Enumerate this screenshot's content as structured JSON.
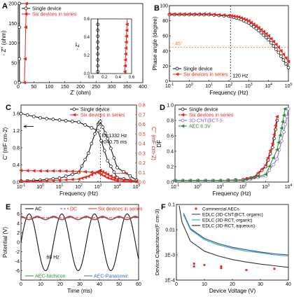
{
  "chart_data": [
    {
      "panel": "A",
      "type": "line",
      "xlabel": "Z' (ohm)",
      "ylabel": "- Z'' (ohm)",
      "xlim": [
        0,
        400
      ],
      "ylim": [
        0,
        200
      ],
      "xticks": [
        "0",
        "50",
        "100",
        "150",
        "200",
        "250",
        "300",
        "350",
        "400"
      ],
      "yticks": [
        "0",
        "50",
        "100",
        "150",
        "200"
      ],
      "legend": [
        "Single device",
        "Six devices in series"
      ],
      "series": [
        {
          "name": "Single device",
          "color": "#000000",
          "x": [
            0.1,
            0.1,
            0.1,
            0.1
          ],
          "y": [
            0,
            60,
            140,
            200
          ]
        },
        {
          "name": "Six devices in series",
          "color": "#e8281e",
          "x": [
            0.5,
            0.55,
            0.6,
            0.65
          ],
          "y": [
            0,
            60,
            140,
            200
          ]
        }
      ],
      "inset": {
        "xlim": [
          0,
          0.6
        ],
        "ylim": [
          0,
          0.6
        ],
        "xticks": [
          "0.0",
          "0.2",
          "0.4",
          "0.6"
        ],
        "yticks": [
          "0.0",
          "0.2",
          "0.4",
          "0.6"
        ],
        "ylabel": "- Z''"
      }
    },
    {
      "panel": "B",
      "type": "line",
      "xlabel": "Frequency (Hz)",
      "ylabel": "Phase angle (degree)",
      "xlim_log": [
        -1,
        5
      ],
      "ylim": [
        0,
        100
      ],
      "xticks": [
        "10-1",
        "100",
        "101",
        "102",
        "103",
        "104",
        "105"
      ],
      "yticks": [
        "0",
        "20",
        "40",
        "60",
        "80",
        "100"
      ],
      "legend": [
        "Single device",
        "Six devices in series"
      ],
      "annotations": [
        "- 45°",
        "120 Hz"
      ],
      "series": [
        {
          "name": "Single device",
          "color": "#000000",
          "logx": [
            -1,
            0,
            1,
            2,
            2.5,
            3,
            3.5,
            4,
            4.5,
            5
          ],
          "y": [
            88,
            88,
            88,
            86,
            83,
            77,
            67,
            55,
            38,
            18
          ]
        },
        {
          "name": "Six devices in series",
          "color": "#e8281e",
          "logx": [
            -1,
            0,
            1,
            2,
            2.5,
            3,
            3.5,
            4,
            4.5,
            5
          ],
          "y": [
            89,
            89,
            89,
            87,
            85,
            80,
            71,
            60,
            45,
            26
          ]
        }
      ]
    },
    {
      "panel": "C",
      "type": "line",
      "xlabel": "Frequency (Hz)",
      "ylabel": "C' (mF cm-2)",
      "ylabel2": "C'' (mF cm-2)",
      "xlim_log": [
        -1,
        5
      ],
      "ylim": [
        0,
        1.8
      ],
      "ylim2": [
        0,
        0.8
      ],
      "xticks": [
        "10-1",
        "100",
        "101",
        "102",
        "103",
        "104",
        "105"
      ],
      "yticks": [
        "0.0",
        "0.4",
        "0.8",
        "1.2",
        "1.6"
      ],
      "y2ticks": [
        "0.0",
        "0.1",
        "0.2",
        "0.3",
        "0.4",
        "0.5",
        "0.6",
        "0.7",
        "0.8"
      ],
      "legend": [
        "Single device",
        "Six devices in series"
      ],
      "annotations": [
        "f0=1332 Hz",
        "τ0=0.75 ms"
      ],
      "series": [
        {
          "name": "Single device C'",
          "color": "#000000",
          "logx": [
            -1,
            0,
            1,
            2,
            3,
            3.5,
            4,
            5
          ],
          "y": [
            1.6,
            1.5,
            1.45,
            1.4,
            1.2,
            0.5,
            0.1,
            0.02
          ]
        },
        {
          "name": "Single device C''",
          "color": "#000000",
          "logx": [
            -1,
            0,
            1,
            2,
            2.5,
            3,
            3.12,
            3.5,
            4,
            5
          ],
          "y": [
            0.01,
            0.02,
            0.04,
            0.1,
            0.3,
            0.6,
            0.63,
            0.45,
            0.15,
            0.02
          ]
        },
        {
          "name": "Six devices C'",
          "color": "#e8281e",
          "logx": [
            -1,
            0,
            1,
            2,
            3,
            3.5,
            4,
            5
          ],
          "y": [
            0.27,
            0.26,
            0.26,
            0.25,
            0.22,
            0.1,
            0.03,
            0.01
          ]
        },
        {
          "name": "Six devices C''",
          "color": "#e8281e",
          "logx": [
            -1,
            0,
            1,
            2,
            2.5,
            3,
            3.12,
            3.5,
            4,
            5
          ],
          "y": [
            0.01,
            0.01,
            0.02,
            0.03,
            0.06,
            0.11,
            0.12,
            0.08,
            0.03,
            0.01
          ]
        }
      ]
    },
    {
      "panel": "D",
      "type": "line",
      "xlabel": "Frequency (Hz)",
      "ylabel": "DF",
      "xlim_log": [
        -1,
        4
      ],
      "ylim": [
        0,
        1.0
      ],
      "xticks": [
        "10-1",
        "100",
        "101",
        "102",
        "103",
        "104"
      ],
      "yticks": [
        "0.0",
        "0.2",
        "0.4",
        "0.6",
        "0.8",
        "1.0"
      ],
      "legend": [
        "Single device",
        "Six devices in series",
        "3D-CNT@CT-5",
        "AEC 6.3V"
      ],
      "series": [
        {
          "name": "Single device",
          "color": "#000000",
          "logx": [
            -1,
            0,
            1,
            2,
            2.5,
            3,
            3.3,
            3.5
          ],
          "y": [
            0.02,
            0.02,
            0.02,
            0.03,
            0.06,
            0.2,
            0.45,
            0.8
          ]
        },
        {
          "name": "Six devices in series",
          "color": "#e8281e",
          "logx": [
            -1,
            0,
            1,
            2,
            2.5,
            3,
            3.3,
            3.5
          ],
          "y": [
            0.02,
            0.02,
            0.02,
            0.03,
            0.07,
            0.22,
            0.5,
            0.85
          ]
        },
        {
          "name": "3D-CNT@CT-5",
          "color": "#8a5fc8",
          "logx": [
            -1,
            0,
            1,
            2,
            3,
            3.5,
            3.8,
            4
          ],
          "y": [
            0.02,
            0.02,
            0.02,
            0.02,
            0.08,
            0.3,
            0.65,
            0.95
          ]
        },
        {
          "name": "AEC 6.3V",
          "color": "#2e8b3c",
          "logx": [
            -1,
            0,
            1,
            2,
            3,
            3.5,
            3.7,
            3.85
          ],
          "y": [
            0.02,
            0.02,
            0.02,
            0.02,
            0.1,
            0.42,
            0.7,
            0.95
          ]
        }
      ]
    },
    {
      "panel": "E",
      "type": "line",
      "xlabel": "Time (ms)",
      "ylabel": "Potential (V)",
      "xlim": [
        0,
        60
      ],
      "ylim": [
        -8,
        8
      ],
      "xticks": [
        "0",
        "10",
        "20",
        "30",
        "40",
        "50",
        "60"
      ],
      "yticks": [
        "-6",
        "-4",
        "-2",
        "0",
        "2",
        "4",
        "6"
      ],
      "legend": [
        "AC",
        "DC",
        "Six devices in series",
        "AEC-Nichicon",
        "AEC-Panasonic"
      ],
      "annotations": [
        "60 Hz"
      ],
      "ac_amplitude": 6,
      "ac_frequency_hz": 60,
      "dc_level": 5.2,
      "ripple": 0.35,
      "series": [
        {
          "name": "AC",
          "color": "#000000"
        },
        {
          "name": "DC",
          "color": "#e8281e"
        },
        {
          "name": "Six devices in series",
          "color": "#e8281e"
        },
        {
          "name": "AEC-Nichicon",
          "color": "#2e8b3c"
        },
        {
          "name": "AEC-Panasonic",
          "color": "#3a66c4"
        }
      ]
    },
    {
      "panel": "F",
      "type": "line",
      "xlabel": "Device Voltage (V)",
      "ylabel": "Device Capacitance(F cm-3)",
      "xlim": [
        0,
        40
      ],
      "ylim_log": [
        -4,
        -1
      ],
      "xticks": [
        "0",
        "10",
        "20",
        "30",
        "40"
      ],
      "yticks": [
        "1E-4",
        "1E-3",
        "0.01",
        "0.1"
      ],
      "legend": [
        "Commercial AECs",
        "EDLC (3D-CNT@CT, organic)",
        "EDLC (3D-RCT, organic)",
        "EDLC (3D-RCT, aqueous)"
      ],
      "commercial_aecs": {
        "x": [
          6.3,
          6.3,
          10,
          16,
          16,
          25,
          35
        ],
        "y": [
          0.00045,
          0.00035,
          0.0004,
          0.0003,
          0.00035,
          0.00025,
          0.00028
        ]
      },
      "series": [
        {
          "name": "EDLC (3D-CNT@CT, organic)",
          "color": "#2a4c9a",
          "x": [
            2.5,
            5,
            10,
            15,
            20,
            25,
            30,
            35,
            40
          ],
          "y": [
            0.045,
            0.011,
            0.0045,
            0.0028,
            0.002,
            0.0016,
            0.0013,
            0.0011,
            0.001
          ]
        },
        {
          "name": "EDLC (3D-RCT, organic)",
          "color": "#3aa8b4",
          "x": [
            2.5,
            5,
            10,
            15,
            20,
            25,
            30,
            35,
            40
          ],
          "y": [
            0.04,
            0.01,
            0.004,
            0.0025,
            0.0018,
            0.0014,
            0.0012,
            0.001,
            0.0009
          ]
        },
        {
          "name": "EDLC (3D-RCT, aqueous)",
          "color": "#333333",
          "x": [
            1,
            2,
            5,
            10,
            15,
            20,
            25,
            30,
            35,
            40
          ],
          "y": [
            0.09,
            0.02,
            0.0035,
            0.0014,
            0.0009,
            0.00065,
            0.00052,
            0.00043,
            0.00037,
            0.00032
          ]
        }
      ]
    }
  ]
}
